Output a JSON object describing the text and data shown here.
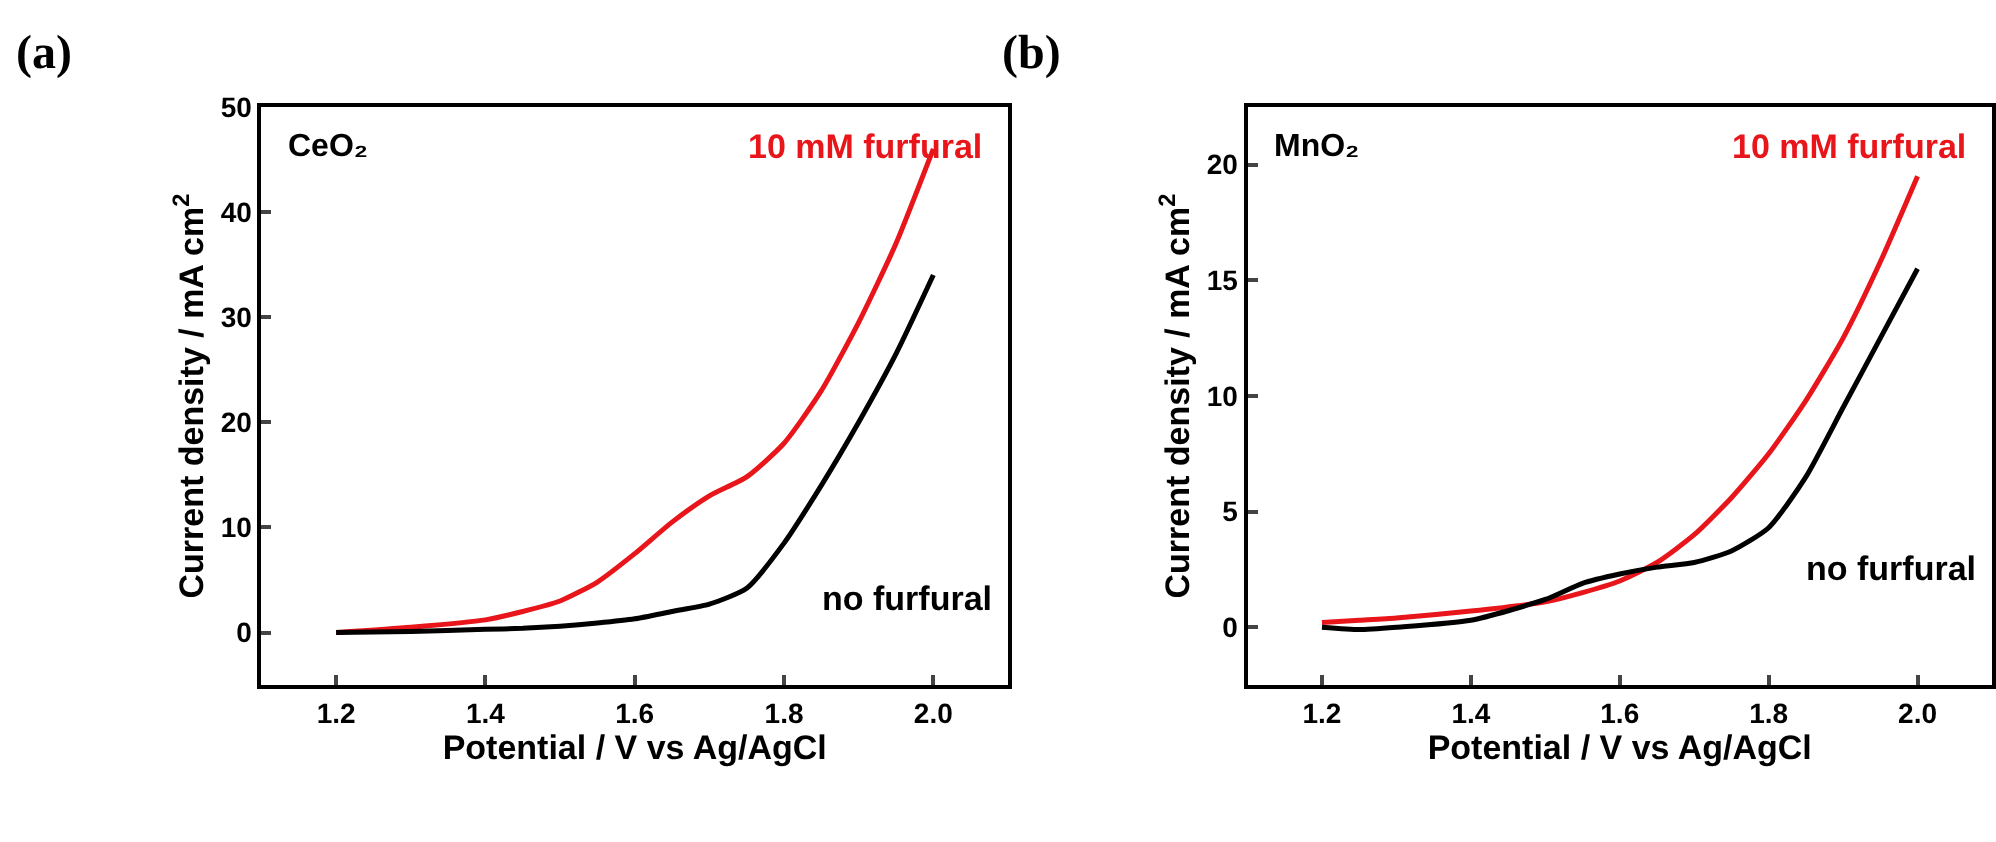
{
  "chart_data": [
    {
      "type": "line",
      "title": "(a)",
      "xlabel": "Potential / V vs Ag/AgCl",
      "ylabel": "Current density / mA cm$^{2}$",
      "annotations": [
        "CeO₂"
      ],
      "x": [
        1.2,
        1.3,
        1.4,
        1.45,
        1.5,
        1.55,
        1.6,
        1.65,
        1.7,
        1.75,
        1.8,
        1.85,
        1.9,
        1.95,
        2.0
      ],
      "xlim": [
        1.1,
        2.1
      ],
      "xticks": [
        1.2,
        1.4,
        1.6,
        1.8,
        {
          "value": 2,
          "label": "2.0"
        }
      ],
      "ylim": [
        -5,
        50
      ],
      "yticks": [
        0,
        10,
        20,
        30,
        40,
        50
      ],
      "legend": false,
      "series": [
        {
          "name": "10 mM furfural",
          "color": "#e8161b",
          "values": [
            0,
            0.5,
            1.2,
            2,
            3,
            4.8,
            7.5,
            10.5,
            13,
            14.8,
            18,
            23,
            29.5,
            37,
            46
          ]
        },
        {
          "name": "no furfural",
          "color": "#000000",
          "values": [
            0,
            0.1,
            0.3,
            0.4,
            0.6,
            0.9,
            1.3,
            2,
            2.7,
            4.2,
            8.5,
            14,
            20,
            26.5,
            34
          ]
        }
      ]
    },
    {
      "type": "line",
      "title": "(b)",
      "xlabel": "Potential / V vs Ag/AgCl",
      "ylabel": "Current density / mA cm$^{2}$",
      "annotations": [
        "MnO₂"
      ],
      "x": [
        1.2,
        1.25,
        1.3,
        1.4,
        1.5,
        1.55,
        1.6,
        1.65,
        1.7,
        1.75,
        1.8,
        1.85,
        1.9,
        1.95,
        2.0
      ],
      "xlim": [
        1.1,
        2.1
      ],
      "xticks": [
        1.2,
        1.4,
        1.6,
        1.8,
        {
          "value": 2,
          "label": "2.0"
        }
      ],
      "ylim": [
        -2.5,
        22.5
      ],
      "yticks": [
        0,
        5,
        10,
        15,
        20
      ],
      "legend": false,
      "series": [
        {
          "name": "10 mM furfural",
          "color": "#e8161b",
          "values": [
            0.2,
            0.3,
            0.4,
            0.7,
            1.1,
            1.5,
            2.0,
            2.8,
            4.0,
            5.6,
            7.5,
            9.8,
            12.5,
            15.8,
            19.5
          ]
        },
        {
          "name": "no furfural",
          "color": "#000000",
          "values": [
            0,
            -0.1,
            0,
            0.3,
            1.2,
            1.9,
            2.3,
            2.6,
            2.8,
            3.3,
            4.3,
            6.5,
            9.5,
            12.5,
            15.5
          ]
        }
      ]
    }
  ]
}
